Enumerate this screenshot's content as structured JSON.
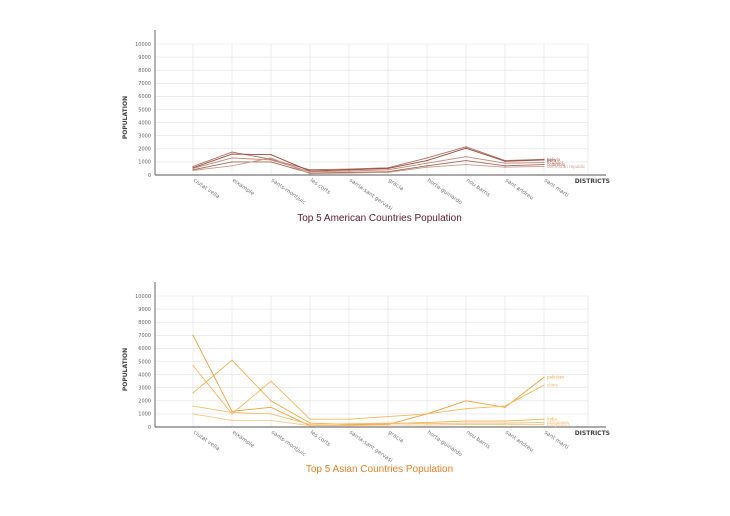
{
  "chart_data": [
    {
      "type": "line",
      "title": "Top 5 American Countries Population",
      "title_color": "#5a1a2a",
      "xlabel": "DISTRICTS",
      "ylabel": "POPULATION",
      "ylim": [
        0,
        10000
      ],
      "yticks": [
        "0",
        "1000",
        "2000",
        "3000",
        "4000",
        "5000",
        "6000",
        "7000",
        "8000",
        "9000",
        "10000"
      ],
      "grid": true,
      "categories": [
        "ciutat vella",
        "eixample",
        "sants-montjuic",
        "les corts",
        "sarria-sant gervasi",
        "gracia",
        "horta-guinardo",
        "nou barris",
        "sant andreu",
        "sant marti"
      ],
      "series": [
        {
          "name": "bolivia",
          "color": "#b07060",
          "values": [
            650,
            1750,
            1200,
            400,
            450,
            550,
            1300,
            2150,
            1100,
            1200
          ]
        },
        {
          "name": "peru",
          "color": "#9a4a40",
          "values": [
            550,
            1600,
            1550,
            300,
            400,
            500,
            1100,
            2050,
            1050,
            1150
          ]
        },
        {
          "name": "ecuador",
          "color": "#c08a7a",
          "values": [
            500,
            1300,
            1150,
            250,
            300,
            400,
            900,
            1400,
            900,
            950
          ]
        },
        {
          "name": "colombia",
          "color": "#a86858",
          "values": [
            400,
            1000,
            1000,
            150,
            200,
            250,
            700,
            1100,
            700,
            800
          ]
        },
        {
          "name": "dominican republic",
          "color": "#c89a88",
          "values": [
            350,
            700,
            1300,
            100,
            150,
            200,
            600,
            800,
            600,
            650
          ]
        }
      ]
    },
    {
      "type": "line",
      "title": "Top 5 Asian Countries Population",
      "title_color": "#e8822a",
      "xlabel": "DISTRICTS",
      "ylabel": "POPULATION",
      "ylim": [
        0,
        10000
      ],
      "yticks": [
        "0",
        "1000",
        "2000",
        "3000",
        "4000",
        "5000",
        "6000",
        "7000",
        "8000",
        "9000",
        "10000"
      ],
      "grid": true,
      "categories": [
        "ciutat vella",
        "eixample",
        "sants-montjuic",
        "les corts",
        "sarria-sant gervasi",
        "gracia",
        "horta-guinardo",
        "nou barris",
        "sant andreu",
        "sant marti"
      ],
      "series": [
        {
          "name": "pakistan",
          "color": "#f0a040",
          "values": [
            7000,
            1200,
            1500,
            100,
            150,
            200,
            1000,
            2000,
            1500,
            3800
          ]
        },
        {
          "name": "china",
          "color": "#f5b860",
          "values": [
            4700,
            1000,
            3500,
            600,
            600,
            800,
            1000,
            1400,
            1600,
            3200
          ]
        },
        {
          "name": "india",
          "color": "#f0b050",
          "values": [
            2600,
            5100,
            2000,
            300,
            200,
            250,
            350,
            450,
            450,
            600
          ]
        },
        {
          "name": "philippines",
          "color": "#f3c070",
          "values": [
            1600,
            1100,
            1000,
            200,
            250,
            300,
            250,
            300,
            300,
            350
          ]
        },
        {
          "name": "bangladesh",
          "color": "#f7c888",
          "values": [
            1000,
            500,
            500,
            100,
            100,
            150,
            150,
            200,
            200,
            200
          ]
        }
      ]
    }
  ]
}
